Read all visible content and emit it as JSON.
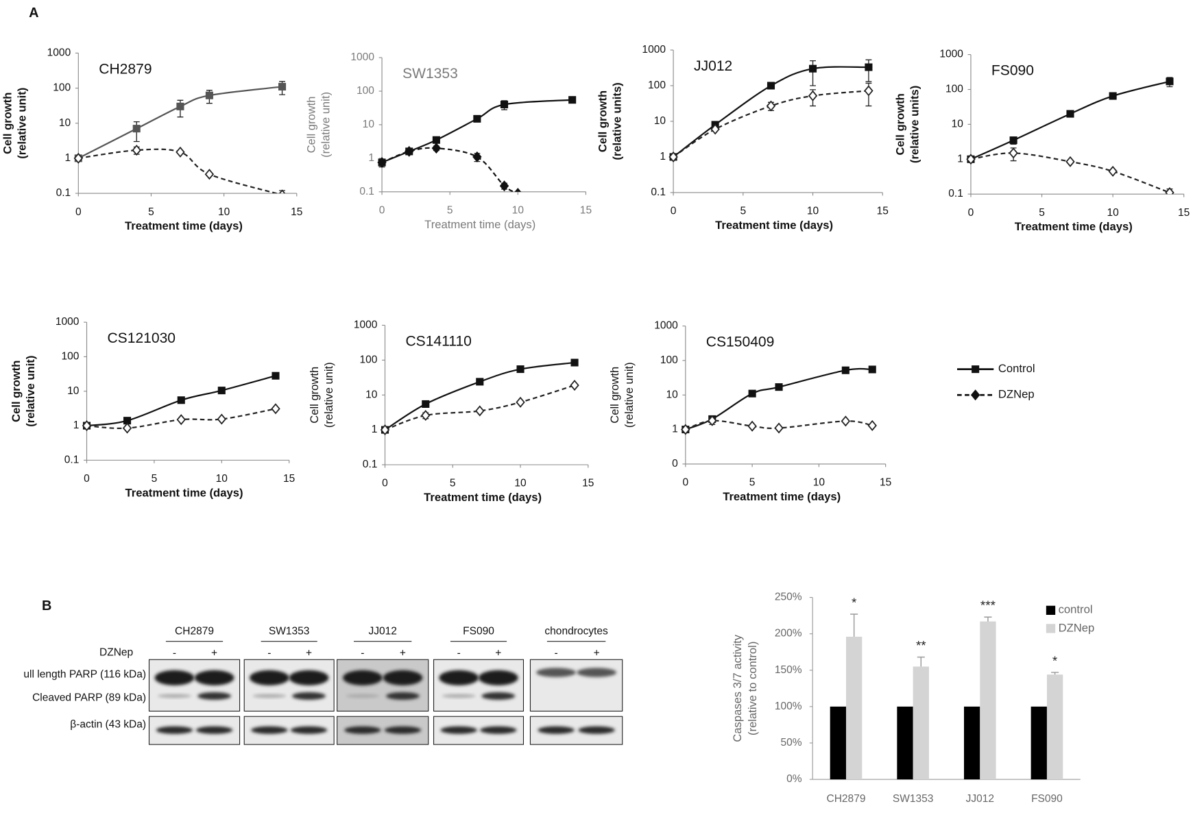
{
  "panel_labels": [
    "A",
    "B"
  ],
  "legend": [
    "Control",
    "DZNep"
  ],
  "chart_data": [
    {
      "type": "line",
      "title": "CH2879",
      "ylabel": [
        "Cell growth",
        "(relative unit)"
      ],
      "xlabel": "Treatment time (days)",
      "log_y": true,
      "xlim": [
        0,
        15
      ],
      "xticks": [
        0,
        5,
        10,
        15
      ],
      "ylim": [
        0.1,
        1000
      ],
      "yticks": [
        0.1,
        1,
        10,
        100,
        1000
      ],
      "series": [
        {
          "color": "#555555",
          "marker": "square",
          "dash": false,
          "x": [
            0,
            4,
            7,
            9,
            14
          ],
          "values": [
            1,
            7,
            30,
            62,
            110
          ],
          "errors": [
            0.1,
            4,
            15,
            25,
            45
          ]
        },
        {
          "color": "#222222",
          "marker": "diamond",
          "dash": true,
          "x": [
            0,
            4,
            7,
            9,
            14
          ],
          "values": [
            1,
            1.7,
            1.5,
            0.35,
            0.09
          ],
          "errors": [
            null,
            0.4,
            null,
            null,
            0.03
          ]
        }
      ]
    },
    {
      "type": "line",
      "title": "SW1353",
      "ylabel": [
        "Cell growth",
        "(relative unit)"
      ],
      "xlabel": "Treatment time (days)",
      "log_y": true,
      "xlim": [
        0,
        15
      ],
      "xticks": [
        0,
        5,
        10,
        15
      ],
      "ylim": [
        0.1,
        1000
      ],
      "yticks": [
        0.1,
        1,
        10,
        100,
        1000
      ],
      "series": [
        {
          "color": "#111111",
          "marker": "square",
          "dash": false,
          "x": [
            0,
            2,
            4,
            7,
            9,
            14
          ],
          "values": [
            0.75,
            1.6,
            3.5,
            15,
            40,
            55
          ],
          "errors": [
            0.2,
            null,
            null,
            null,
            12,
            null
          ]
        },
        {
          "color": "#111111",
          "marker": "diamond-filled",
          "dash": true,
          "x": [
            0,
            2,
            4,
            7,
            9,
            10
          ],
          "values": [
            0.75,
            1.6,
            2,
            1.1,
            0.15,
            0.09
          ],
          "errors": [
            null,
            null,
            0.3,
            0.3,
            0.03,
            null
          ]
        }
      ]
    },
    {
      "type": "line",
      "title": "JJ012",
      "ylabel": [
        "Cell growth",
        "(relative units)"
      ],
      "xlabel": "Treatment time (days)",
      "log_y": true,
      "xlim": [
        0,
        15
      ],
      "xticks": [
        0,
        5,
        10,
        15
      ],
      "ylim": [
        0.1,
        1000
      ],
      "yticks": [
        0.1,
        1,
        10,
        100,
        1000
      ],
      "series": [
        {
          "color": "#111111",
          "marker": "square",
          "dash": false,
          "x": [
            0,
            3,
            7,
            10,
            14
          ],
          "values": [
            1,
            8,
            100,
            300,
            330
          ],
          "errors": [
            null,
            null,
            null,
            200,
            200
          ]
        },
        {
          "color": "#222222",
          "marker": "diamond",
          "dash": true,
          "x": [
            0,
            3,
            7,
            10,
            14
          ],
          "values": [
            1,
            6,
            27,
            52,
            72
          ],
          "errors": [
            null,
            null,
            7,
            25,
            45
          ]
        }
      ]
    },
    {
      "type": "line",
      "title": "FS090",
      "ylabel": [
        "Cell growth",
        "(relative units)"
      ],
      "xlabel": "Treatment time (days)",
      "log_y": true,
      "xlim": [
        0,
        15
      ],
      "xticks": [
        0,
        5,
        10,
        15
      ],
      "ylim": [
        0.1,
        1000
      ],
      "yticks": [
        0.1,
        1,
        10,
        100,
        1000
      ],
      "series": [
        {
          "color": "#111111",
          "marker": "square",
          "dash": false,
          "x": [
            0,
            3,
            7,
            10,
            14
          ],
          "values": [
            1,
            3.5,
            20,
            65,
            170
          ],
          "errors": [
            null,
            0.8,
            null,
            null,
            50
          ]
        },
        {
          "color": "#222222",
          "marker": "diamond",
          "dash": true,
          "x": [
            0,
            3,
            7,
            10,
            14
          ],
          "values": [
            1,
            1.5,
            0.85,
            0.45,
            0.11
          ],
          "errors": [
            null,
            0.6,
            null,
            null,
            0.03
          ]
        }
      ]
    },
    {
      "type": "line",
      "title": "CS121030",
      "ylabel": [
        "Cell growth",
        "(relative unit)"
      ],
      "xlabel": "Treatment time (days)",
      "log_y": true,
      "xlim": [
        0,
        15
      ],
      "xticks": [
        0,
        5,
        10,
        15
      ],
      "ylim": [
        0.1,
        1000
      ],
      "yticks": [
        0.1,
        1,
        10,
        100,
        1000
      ],
      "series": [
        {
          "color": "#111111",
          "marker": "square",
          "dash": false,
          "x": [
            0,
            3,
            7,
            10,
            14
          ],
          "values": [
            1,
            1.4,
            5.5,
            10.5,
            28
          ],
          "errors": [
            null,
            null,
            null,
            null,
            null
          ]
        },
        {
          "color": "#222222",
          "marker": "diamond",
          "dash": true,
          "x": [
            0,
            3,
            7,
            10,
            14
          ],
          "values": [
            1,
            0.85,
            1.5,
            1.55,
            3.1
          ],
          "errors": [
            null,
            null,
            null,
            null,
            null
          ]
        }
      ]
    },
    {
      "type": "line",
      "title": "CS141110",
      "ylabel": [
        "Cell growth",
        "(relative unit)"
      ],
      "xlabel": "Treatment time (days)",
      "log_y": true,
      "xlim": [
        0,
        15
      ],
      "xticks": [
        0,
        5,
        10,
        15
      ],
      "ylim": [
        0.1,
        1000
      ],
      "yticks": [
        0.1,
        1,
        10,
        100,
        1000
      ],
      "series": [
        {
          "color": "#111111",
          "marker": "square",
          "dash": false,
          "x": [
            0,
            3,
            7,
            10,
            14
          ],
          "values": [
            1,
            5.5,
            24,
            55,
            85
          ],
          "errors": [
            null,
            null,
            null,
            null,
            null
          ]
        },
        {
          "color": "#222222",
          "marker": "diamond",
          "dash": true,
          "x": [
            0,
            3,
            7,
            10,
            14
          ],
          "values": [
            1,
            2.6,
            3.5,
            6.2,
            19
          ],
          "errors": [
            null,
            0.5,
            null,
            null,
            null
          ]
        }
      ]
    },
    {
      "type": "line",
      "title": "CS150409",
      "ylabel": [
        "Cell growth",
        "(relative unit)"
      ],
      "xlabel": "Treatment time (days)",
      "log_y": true,
      "xlim": [
        0,
        15
      ],
      "xticks": [
        0,
        5,
        10,
        15
      ],
      "ylim": [
        0.1,
        1000
      ],
      "yticks": [
        {
          "value": 0.1,
          "label": "0"
        },
        1,
        10,
        100,
        1000
      ],
      "series": [
        {
          "color": "#111111",
          "marker": "square",
          "dash": false,
          "x": [
            0,
            2,
            5,
            7,
            12,
            14
          ],
          "values": [
            1,
            2,
            11,
            17,
            52,
            55
          ],
          "errors": [
            null,
            null,
            null,
            null,
            null,
            null
          ]
        },
        {
          "color": "#222222",
          "marker": "diamond",
          "dash": true,
          "x": [
            0,
            2,
            5,
            7,
            12,
            14
          ],
          "values": [
            1,
            1.8,
            1.25,
            1.1,
            1.75,
            1.3
          ],
          "errors": [
            null,
            0.4,
            null,
            null,
            null,
            null
          ]
        }
      ]
    },
    {
      "type": "bar",
      "ylabel": [
        "Caspases 3/7 activity",
        "(relative to control)"
      ],
      "categories": [
        "CH2879",
        "SW1353",
        "JJ012",
        "FS090"
      ],
      "ylim": [
        0,
        250
      ],
      "yticks": [
        {
          "value": 0,
          "label": "0%"
        },
        {
          "value": 50,
          "label": "50%"
        },
        {
          "value": 100,
          "label": "100%"
        },
        {
          "value": 150,
          "label": "150%"
        },
        {
          "value": 200,
          "label": "200%"
        },
        {
          "value": 250,
          "label": "250%"
        }
      ],
      "series": [
        {
          "name": "control",
          "color": "#000000",
          "values": [
            100,
            100,
            100,
            100
          ],
          "errors": [
            null,
            null,
            null,
            null
          ]
        },
        {
          "name": "DZNep",
          "color": "#d4d4d4",
          "values": [
            196,
            155,
            217,
            144
          ],
          "errors": [
            31,
            13,
            6,
            3
          ]
        }
      ],
      "annotations": [
        "*",
        "**",
        "***",
        "*"
      ]
    }
  ],
  "blot": {
    "treatment_label": "DZNep",
    "signs": [
      "-",
      "+"
    ],
    "columns": [
      "CH2879",
      "SW1353",
      "JJ012",
      "FS090",
      "chondrocytes"
    ],
    "rows": [
      "ull length PARP (116 kDa)",
      "Cleaved PARP (89 kDa)",
      "β-actin (43 kDa)"
    ]
  }
}
